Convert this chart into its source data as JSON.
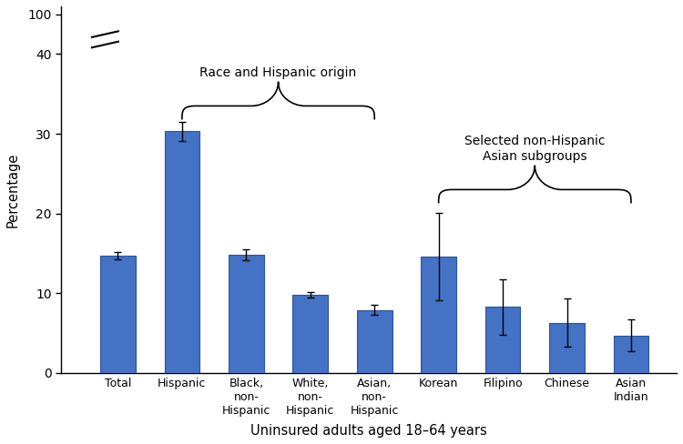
{
  "categories": [
    "Total",
    "Hispanic",
    "Black,\nnon-\nHispanic",
    "White,\nnon-\nHispanic",
    "Asian,\nnon-\nHispanic",
    "Korean",
    "Filipino",
    "Chinese",
    "Asian\nIndian"
  ],
  "values": [
    14.7,
    30.3,
    14.8,
    9.8,
    7.9,
    14.6,
    8.3,
    6.3,
    4.7
  ],
  "errors_low": [
    0.5,
    1.2,
    0.7,
    0.3,
    0.6,
    5.5,
    3.5,
    3.0,
    2.0
  ],
  "errors_high": [
    0.5,
    1.2,
    0.7,
    0.3,
    0.6,
    5.5,
    3.5,
    3.0,
    2.0
  ],
  "bar_color": "#4472c4",
  "bar_edge_color": "#2c539e",
  "error_color": "black",
  "ylabel": "Percentage",
  "xlabel": "Uninsured adults aged 18–64 years",
  "annotation1_text": "Race and Hispanic origin",
  "annotation2_text": "Selected non-Hispanic\nAsian subgroups",
  "background_color": "#ffffff",
  "fig_width": 7.5,
  "fig_height": 4.88,
  "dpi": 100
}
